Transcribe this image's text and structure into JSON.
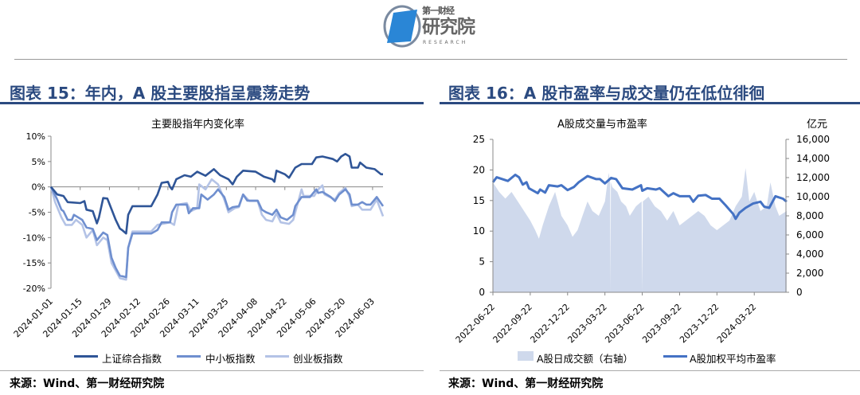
{
  "logo": {
    "line1": "第一财经",
    "line2": "研究院",
    "line3": "RESEARCH"
  },
  "left": {
    "section_title": "图表 15：年内，A 股主要股指呈震荡走势",
    "source": "来源：Wind、第一财经研究院"
  },
  "right": {
    "section_title": "图表 16：A 股市盈率与成交量仍在低位徘徊",
    "source": "来源：Wind、第一财经研究院"
  },
  "chart_data": [
    {
      "type": "line",
      "title": "主要股指年内变化率",
      "xlabel": "",
      "ylabel": "",
      "x_unit": "days since 2024-01-01",
      "x_ticks": [
        0,
        14,
        28,
        42,
        56,
        70,
        84,
        98,
        112,
        126,
        140,
        154
      ],
      "x_tick_labels": [
        "2024-01-01",
        "2024-01-15",
        "2024-01-29",
        "2024-02-12",
        "2024-02-26",
        "2024-03-11",
        "2024-03-25",
        "2024-04-08",
        "2024-04-22",
        "2024-05-06",
        "2024-05-20",
        "2024-06-03"
      ],
      "xlim": [
        0,
        159
      ],
      "ylim": [
        -20,
        10
      ],
      "y_ticks": [
        10,
        5,
        0,
        -5,
        -10,
        -15,
        -20
      ],
      "y_tick_labels": [
        "10%",
        "5%",
        "0%",
        "-5%",
        "-10%",
        "-15%",
        "-20%"
      ],
      "legend_position": "bottom",
      "series": [
        {
          "name": "上证综合指数",
          "color": "#2f5597",
          "x": [
            0,
            1,
            3,
            6,
            8,
            14,
            16,
            17,
            20,
            22,
            23,
            25,
            27,
            31,
            33,
            34,
            36,
            37,
            39,
            48,
            51,
            53,
            56,
            57,
            58,
            60,
            64,
            67,
            70,
            74,
            78,
            81,
            85,
            87,
            89,
            92,
            98,
            102,
            106,
            107,
            108,
            112,
            114,
            117,
            120,
            125,
            127,
            130,
            135,
            137,
            139,
            141,
            143,
            144,
            147,
            148,
            151,
            155,
            158,
            159
          ],
          "y": [
            0,
            -0.5,
            -1.5,
            -1.8,
            -3,
            -3.2,
            -2.8,
            -4.5,
            -4.8,
            -7.2,
            -6,
            -2.2,
            -2.3,
            -6.5,
            -8.2,
            -8.5,
            -9.2,
            -5.5,
            -3.8,
            -3.8,
            -1.5,
            0.8,
            1,
            0,
            -0.5,
            1.5,
            2.3,
            2,
            3,
            2.2,
            3.5,
            2.3,
            1.5,
            0.5,
            2,
            3.2,
            3,
            2,
            1.5,
            1,
            3.2,
            2.5,
            1.8,
            3.8,
            4.5,
            4.5,
            5.8,
            6,
            5.5,
            5,
            6,
            6.5,
            6,
            3.8,
            3.8,
            4.8,
            3.8,
            3.5,
            2.5,
            2.5
          ]
        },
        {
          "name": "中小板指数",
          "color": "#6f8fcf",
          "x": [
            0,
            3,
            5,
            6,
            8,
            10,
            11,
            15,
            17,
            20,
            22,
            25,
            27,
            29,
            31,
            33,
            36,
            37,
            39,
            48,
            51,
            53,
            57,
            58,
            60,
            65,
            66,
            68,
            71,
            72,
            75,
            78,
            80,
            83,
            85,
            87,
            90,
            92,
            94,
            99,
            101,
            103,
            106,
            108,
            110,
            113,
            116,
            117,
            120,
            124,
            127,
            128,
            130,
            134,
            136,
            138,
            141,
            143,
            144,
            147,
            149,
            151,
            153,
            156,
            159
          ],
          "y": [
            0,
            -2.5,
            -4.5,
            -4.8,
            -6.5,
            -6.5,
            -5.5,
            -6.5,
            -8,
            -8.3,
            -10.5,
            -9,
            -9.5,
            -14,
            -16,
            -17.5,
            -17.8,
            -12,
            -9.2,
            -9.2,
            -8.5,
            -7,
            -7,
            -5,
            -3.5,
            -3.5,
            -5.2,
            -4.2,
            -4.2,
            -1.5,
            -2.5,
            -1.5,
            -0.5,
            -2,
            -4.5,
            -4,
            -3.8,
            -1.5,
            -2.7,
            -2.7,
            -4.5,
            -5,
            -5.5,
            -4.5,
            -6,
            -6.5,
            -5.5,
            -3.8,
            -2,
            -2,
            -0.5,
            -1.2,
            -1,
            -2,
            -2.8,
            -1.5,
            -0.5,
            -1.5,
            -3.5,
            -3.5,
            -3,
            -3.5,
            -3.5,
            -2,
            -3.8
          ]
        },
        {
          "name": "创业板指数",
          "color": "#b4c3e6",
          "x": [
            0,
            2,
            5,
            7,
            10,
            12,
            15,
            17,
            20,
            22,
            25,
            27,
            29,
            31,
            33,
            36,
            37,
            39,
            48,
            51,
            57,
            59,
            61,
            65,
            67,
            70,
            71,
            74,
            77,
            80,
            83,
            85,
            88,
            90,
            92,
            95,
            99,
            101,
            103,
            106,
            108,
            110,
            114,
            116,
            118,
            120,
            121,
            126,
            128,
            130,
            131,
            136,
            138,
            141,
            143,
            144,
            147,
            149,
            153,
            156,
            159
          ],
          "y": [
            0,
            -3,
            -6,
            -7.5,
            -7.5,
            -6.5,
            -7.5,
            -10,
            -8.5,
            -11.5,
            -10,
            -10.5,
            -15,
            -16.5,
            -18,
            -18.3,
            -12,
            -8.8,
            -8.8,
            -7.5,
            -7,
            -7.5,
            -3.5,
            -3.2,
            -4.8,
            -4.2,
            0.5,
            -0.5,
            1.5,
            0.5,
            -2.5,
            -5,
            -4.2,
            -4,
            -1.5,
            -2.8,
            -2.8,
            -5.5,
            -6.5,
            -6.8,
            -5.2,
            -7,
            -7.3,
            -6.5,
            -3.5,
            -0.5,
            -1.8,
            -1.8,
            -0.5,
            0.3,
            -1.5,
            -2.5,
            -1.2,
            -0.2,
            -2,
            -3.8,
            -3.5,
            -4.5,
            -4.5,
            -2.5,
            -5.8
          ]
        }
      ]
    },
    {
      "type": "line+area",
      "title": "A股成交量与市盈率",
      "right_axis_unit": "亿元",
      "x_unit": "months since 2022-06-22",
      "x_ticks": [
        0,
        3,
        6,
        9,
        12,
        15,
        18,
        21
      ],
      "x_tick_labels": [
        "2022-06-22",
        "2022-09-22",
        "2022-12-22",
        "2023-03-22",
        "2023-06-22",
        "2023-09-22",
        "2023-12-22",
        "2024-03-22"
      ],
      "xlim": [
        0,
        23.6
      ],
      "ylim_left": [
        0,
        25
      ],
      "y_ticks_left": [
        0,
        5,
        10,
        15,
        20,
        25
      ],
      "y_tick_labels_left": [
        "0",
        "5",
        "10",
        "15",
        "20",
        "25"
      ],
      "ylim_right": [
        0,
        16000
      ],
      "y_ticks_right": [
        0,
        2000,
        4000,
        6000,
        8000,
        10000,
        12000,
        14000,
        16000
      ],
      "y_tick_labels_right": [
        "0",
        "2,000",
        "4,000",
        "6,000",
        "8,000",
        "10,000",
        "12,000",
        "14,000",
        "16,000"
      ],
      "legend_position": "bottom",
      "series": [
        {
          "name": "A股日成交额（右轴）",
          "type": "area",
          "axis": "right",
          "color": "#cfd9ec",
          "x": [
            0,
            0.5,
            1,
            1.5,
            2,
            2.5,
            3,
            3.4,
            3.7,
            4,
            4.5,
            5,
            5.5,
            6,
            6.4,
            6.8,
            7.2,
            7.6,
            8,
            8.5,
            9,
            9.3,
            9.42,
            9.45,
            9.48,
            9.6,
            10,
            10.3,
            10.7,
            11,
            11.5,
            11.95,
            12.0,
            12.05,
            12.5,
            13,
            13.5,
            14,
            14.5,
            15,
            15.5,
            16,
            16.5,
            17,
            17.5,
            18,
            18.5,
            19,
            19.5,
            20,
            20.3,
            20.6,
            21,
            21.5,
            22,
            22.3,
            22.7,
            23,
            23.6
          ],
          "y": [
            11500,
            10500,
            9800,
            10500,
            9500,
            8500,
            7500,
            6500,
            5600,
            7000,
            9000,
            10500,
            8000,
            7000,
            5800,
            6500,
            8000,
            9500,
            8500,
            8000,
            9500,
            12500,
            11500,
            0,
            11500,
            11000,
            10500,
            9500,
            9000,
            8000,
            9000,
            9500,
            0,
            9500,
            10000,
            9000,
            8500,
            7500,
            8500,
            7000,
            7500,
            8000,
            8500,
            8000,
            7000,
            6500,
            7000,
            7500,
            9000,
            10000,
            13000,
            9500,
            10500,
            8500,
            9000,
            11500,
            9000,
            8000,
            8500
          ]
        },
        {
          "name": "A股加权平均市盈率",
          "type": "line",
          "axis": "left",
          "color": "#4472c4",
          "x": [
            0,
            0.3,
            1.2,
            1.8,
            2.1,
            2.4,
            2.7,
            2.9,
            3.6,
            3.8,
            4.2,
            4.5,
            5.2,
            5.5,
            6,
            6.5,
            6.9,
            7.6,
            8.3,
            8.6,
            9,
            9.5,
            9.9,
            10.4,
            11.2,
            11.9,
            12,
            12.4,
            13.1,
            13.4,
            14.1,
            14.5,
            15,
            15.8,
            16.1,
            16.5,
            17.1,
            17.6,
            18.2,
            18.7,
            19.3,
            19.5,
            19.8,
            20.3,
            20.9,
            21.5,
            21.8,
            22.2,
            22.7,
            23.3,
            23.6
          ],
          "y": [
            18,
            18.8,
            18.2,
            19.2,
            18.8,
            17.6,
            18,
            17,
            16.2,
            16.8,
            16.3,
            17.5,
            17.3,
            17.5,
            16.7,
            17.2,
            18,
            19,
            18.5,
            18.5,
            17.8,
            18.7,
            18.5,
            17,
            16.8,
            17.5,
            16.6,
            17,
            16.8,
            17,
            15.7,
            16.2,
            15.7,
            15.7,
            14.8,
            15.8,
            15.9,
            15.3,
            15.3,
            14.2,
            12.8,
            12,
            13,
            13.8,
            14.5,
            14.8,
            14,
            13.8,
            15.7,
            15.3,
            14.8
          ]
        }
      ]
    }
  ]
}
